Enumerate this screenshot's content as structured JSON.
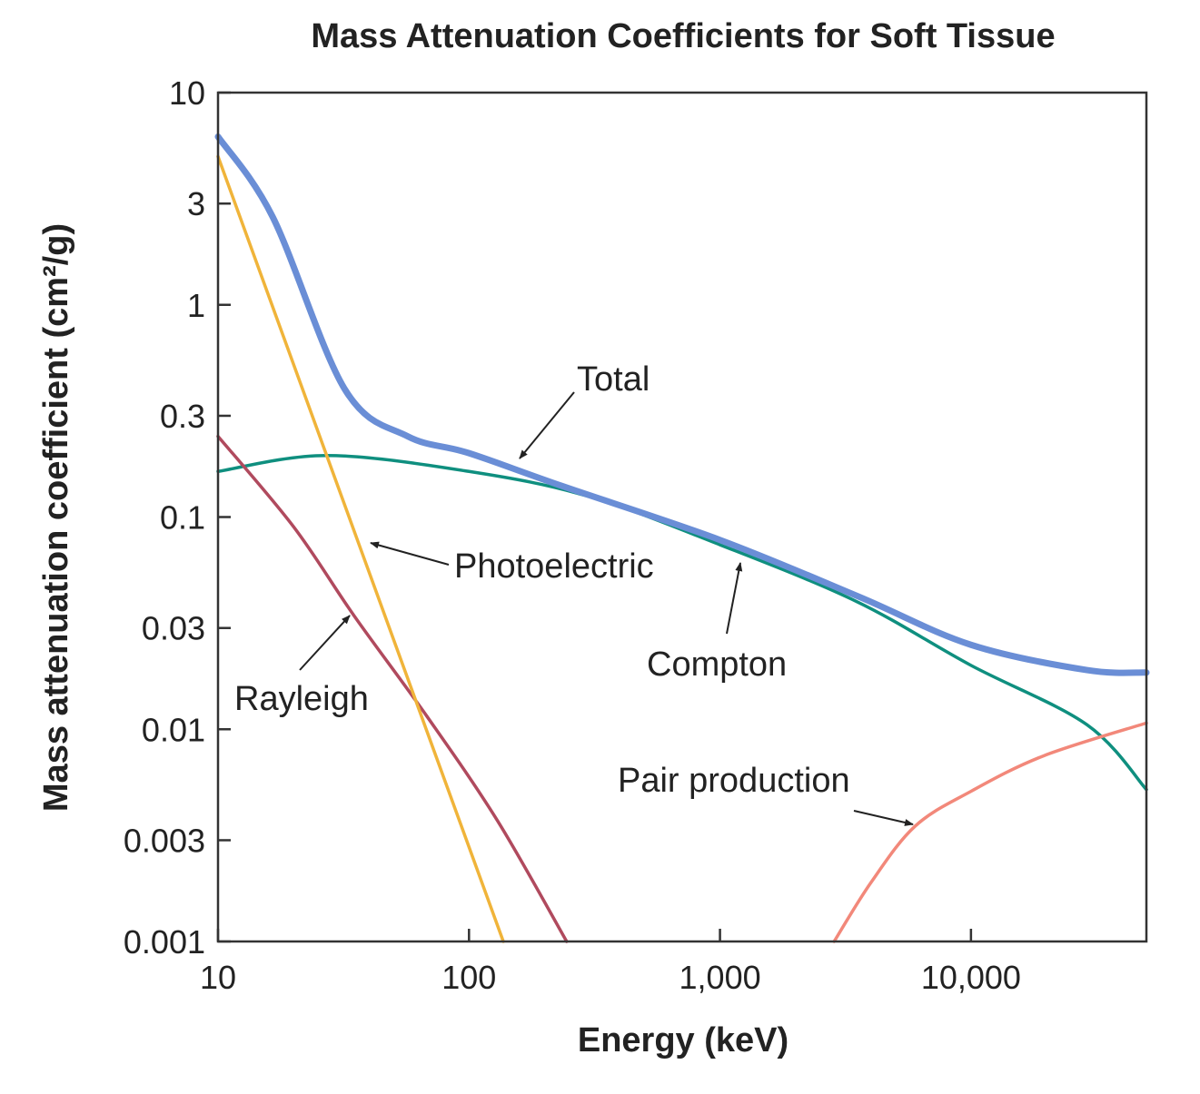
{
  "chart_data": {
    "type": "line",
    "title": "Mass Attenuation Coefficients for Soft Tissue",
    "xlabel": "Energy (keV)",
    "ylabel": "Mass attenuation coefficient (cm²/g)",
    "xscale": "log",
    "yscale": "log",
    "xlim": [
      10,
      50000
    ],
    "ylim": [
      0.001,
      10
    ],
    "grid": false,
    "x_ticks": [
      {
        "value": 10,
        "label": "10"
      },
      {
        "value": 100,
        "label": "100"
      },
      {
        "value": 1000,
        "label": "1,000"
      },
      {
        "value": 10000,
        "label": "10,000"
      }
    ],
    "y_ticks": [
      {
        "value": 10,
        "label": "10"
      },
      {
        "value": 3,
        "label": "3"
      },
      {
        "value": 1,
        "label": "1"
      },
      {
        "value": 0.3,
        "label": "0.3"
      },
      {
        "value": 0.1,
        "label": "0.1"
      },
      {
        "value": 0.03,
        "label": "0.03"
      },
      {
        "value": 0.01,
        "label": "0.01"
      },
      {
        "value": 0.003,
        "label": "0.003"
      },
      {
        "value": 0.001,
        "label": "0.001"
      }
    ],
    "series": [
      {
        "name": "Compton",
        "color": "#0f8f7f",
        "x": [
          10,
          27,
          100,
          300,
          1000,
          3500,
          10000,
          29000,
          50000
        ],
        "y": [
          0.164,
          0.195,
          0.164,
          0.125,
          0.074,
          0.04,
          0.02,
          0.0105,
          0.0052
        ]
      },
      {
        "name": "Rayleigh",
        "color": "#b04a5e",
        "x": [
          10,
          20,
          35,
          68,
          130,
          245
        ],
        "y": [
          0.24,
          0.09,
          0.034,
          0.0115,
          0.0037,
          0.001
        ]
      },
      {
        "name": "Photoelectric",
        "color": "#f0b43a",
        "x": [
          10,
          137
        ],
        "y": [
          5.0,
          0.001
        ]
      },
      {
        "name": "Pair production",
        "color": "#f2887a",
        "x": [
          2850,
          4000,
          6000,
          10000,
          19500,
          50000
        ],
        "y": [
          0.001,
          0.0019,
          0.0035,
          0.0051,
          0.0075,
          0.0107
        ]
      },
      {
        "name": "Total",
        "color": "#6a8ed6",
        "x": [
          10,
          16.5,
          32,
          57,
          100,
          235,
          1000,
          3600,
          10000,
          29000,
          50000
        ],
        "y": [
          6.2,
          2.6,
          0.4,
          0.24,
          0.2,
          0.14,
          0.078,
          0.042,
          0.025,
          0.019,
          0.0185
        ]
      }
    ],
    "annotations": [
      "Total",
      "Photoelectric",
      "Compton",
      "Rayleigh",
      "Pair production"
    ]
  }
}
